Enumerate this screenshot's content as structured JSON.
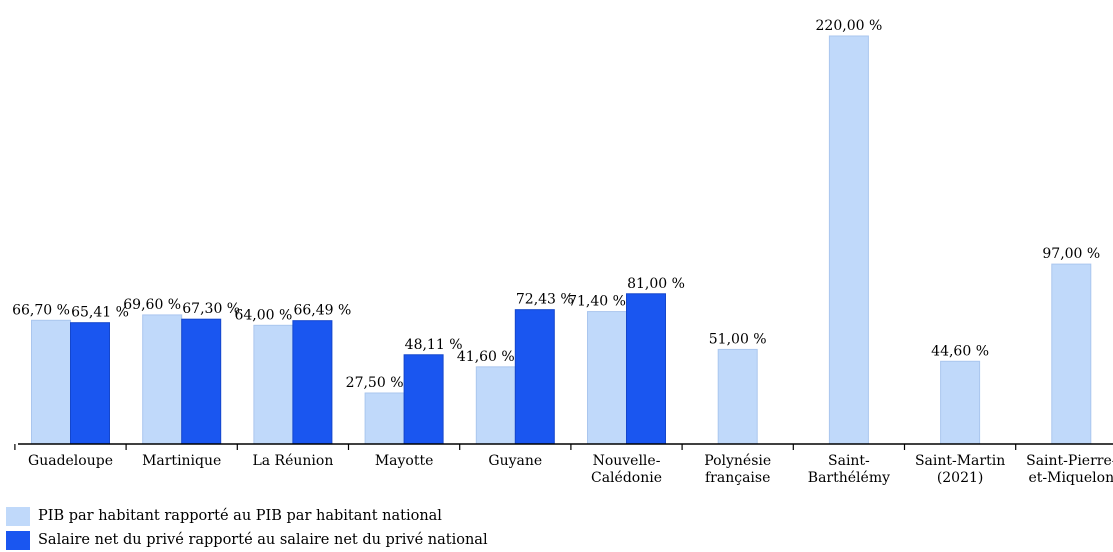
{
  "chart_data": {
    "type": "bar",
    "categories": [
      [
        "Guadeloupe"
      ],
      [
        "Martinique"
      ],
      [
        "La Réunion"
      ],
      [
        "Mayotte"
      ],
      [
        "Guyane"
      ],
      [
        "Nouvelle-",
        "Calédonie"
      ],
      [
        "Polynésie",
        "française"
      ],
      [
        "Saint-",
        "Barthélémy"
      ],
      [
        "Saint-Martin",
        "(2021)"
      ],
      [
        "Saint-Pierre-",
        "et-Miquelon"
      ]
    ],
    "series": [
      {
        "name": "PIB par habitant rapporté au PIB par habitant national",
        "color": "#c0d9fa",
        "values": [
          66.7,
          69.6,
          64.0,
          27.5,
          41.6,
          71.4,
          51.0,
          220.0,
          44.6,
          97.0
        ],
        "labels": [
          "66,70 %",
          "69,60 %",
          "64,00 %",
          "27,50 %",
          "41,60 %",
          "71,40 %",
          "51,00 %",
          "220,00 %",
          "44,60 %",
          "97,00 %"
        ]
      },
      {
        "name": "Salaire net du privé rapporté au salaire net du privé national",
        "color": "#1a56f0",
        "values": [
          65.41,
          67.3,
          66.49,
          48.11,
          72.43,
          81.0,
          null,
          null,
          null,
          null
        ],
        "labels": [
          "65,41 %",
          "67,30 %",
          "66,49 %",
          "48,11 %",
          "72,43 %",
          "81,00 %",
          null,
          null,
          null,
          null
        ]
      }
    ],
    "title": "",
    "xlabel": "",
    "ylabel": "",
    "ylim": [
      0,
      220
    ],
    "grid": false,
    "legend": "bottom-left"
  }
}
